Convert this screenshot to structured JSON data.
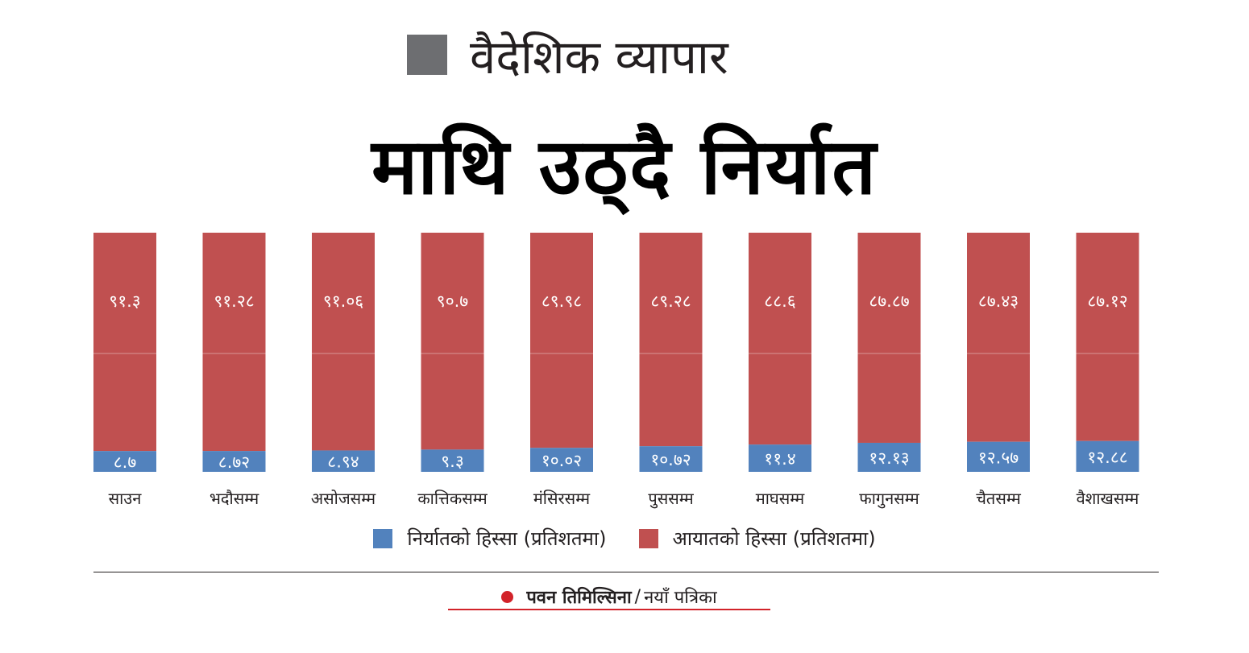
{
  "kicker": "वैदेशिक व्यापार",
  "headline": "माथि उठ्दै निर्यात",
  "legend": {
    "export": "निर्यातको हिस्सा (प्रतिशतमा)",
    "import": "आयातको हिस्सा (प्रतिशतमा)"
  },
  "byline": {
    "author": "पवन तिमिल्सिना",
    "separator": "/",
    "source": "नयाँ पत्रिका"
  },
  "colors": {
    "export": "#5282bd",
    "import": "#c05050",
    "kicker_square": "#6d6e71",
    "accent": "#d2232a"
  },
  "chart_data": {
    "type": "bar",
    "stacked": true,
    "categories": [
      "साउन",
      "भदौसम्म",
      "असोजसम्म",
      "कात्तिकसम्म",
      "मंसिरसम्म",
      "पुससम्म",
      "माघसम्म",
      "फागुनसम्म",
      "चैतसम्म",
      "वैशाखसम्म"
    ],
    "series": [
      {
        "name": "निर्यातको हिस्सा (प्रतिशतमा)",
        "values": [
          8.7,
          8.72,
          8.94,
          9.3,
          10.02,
          10.72,
          11.4,
          12.13,
          12.57,
          12.88
        ],
        "labels": [
          "८.७",
          "८.७२",
          "८.९४",
          "९.३",
          "१०.०२",
          "१०.७२",
          "११.४",
          "१२.१३",
          "१२.५७",
          "१२.८८"
        ]
      },
      {
        "name": "आयातको हिस्सा (प्रतिशतमा)",
        "values": [
          91.3,
          91.28,
          91.06,
          90.7,
          89.98,
          89.28,
          88.6,
          87.87,
          87.43,
          87.12
        ],
        "labels": [
          "९१.३",
          "९१.२८",
          "९१.०६",
          "९०.७",
          "८९.९८",
          "८९.२८",
          "८८.६",
          "८७.८७",
          "८७.४३",
          "८७.१२"
        ]
      }
    ],
    "ylim": [
      0,
      100
    ]
  }
}
